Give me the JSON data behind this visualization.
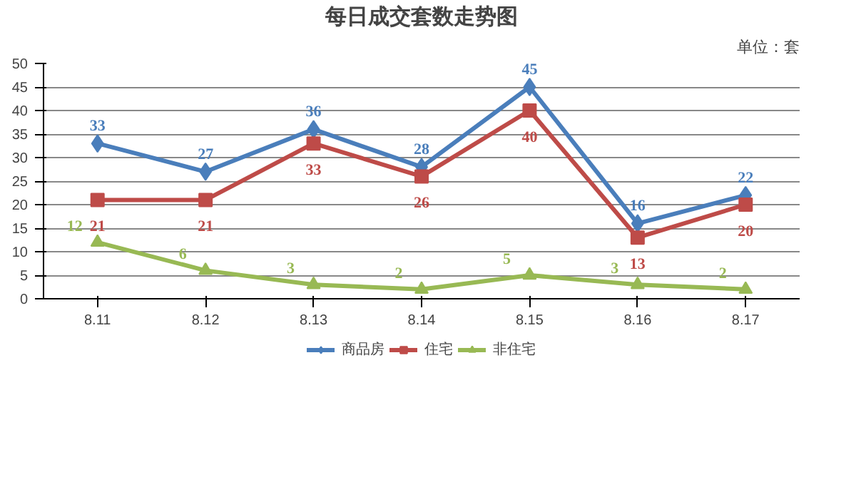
{
  "chart_data": {
    "type": "line",
    "title": "每日成交套数走势图",
    "annotations": [
      "单位：套"
    ],
    "categories": [
      "8.11",
      "8.12",
      "8.13",
      "8.14",
      "8.15",
      "8.16",
      "8.17"
    ],
    "series": [
      {
        "name": "商品房",
        "color": "#4a7ebb",
        "marker": "diamond",
        "values": [
          33,
          27,
          36,
          28,
          45,
          16,
          22
        ]
      },
      {
        "name": "住宅",
        "color": "#be4b48",
        "marker": "square",
        "values": [
          21,
          21,
          33,
          26,
          40,
          13,
          20
        ]
      },
      {
        "name": "非住宅",
        "color": "#98b954",
        "marker": "triangle",
        "values": [
          12,
          6,
          3,
          2,
          5,
          3,
          2
        ]
      }
    ],
    "ylim": [
      0,
      50
    ],
    "yticks": [
      0,
      5,
      10,
      15,
      20,
      25,
      30,
      35,
      40,
      45,
      50
    ],
    "grid": "y",
    "legend": "bottom",
    "data_labels": true,
    "line_style": "solid"
  }
}
